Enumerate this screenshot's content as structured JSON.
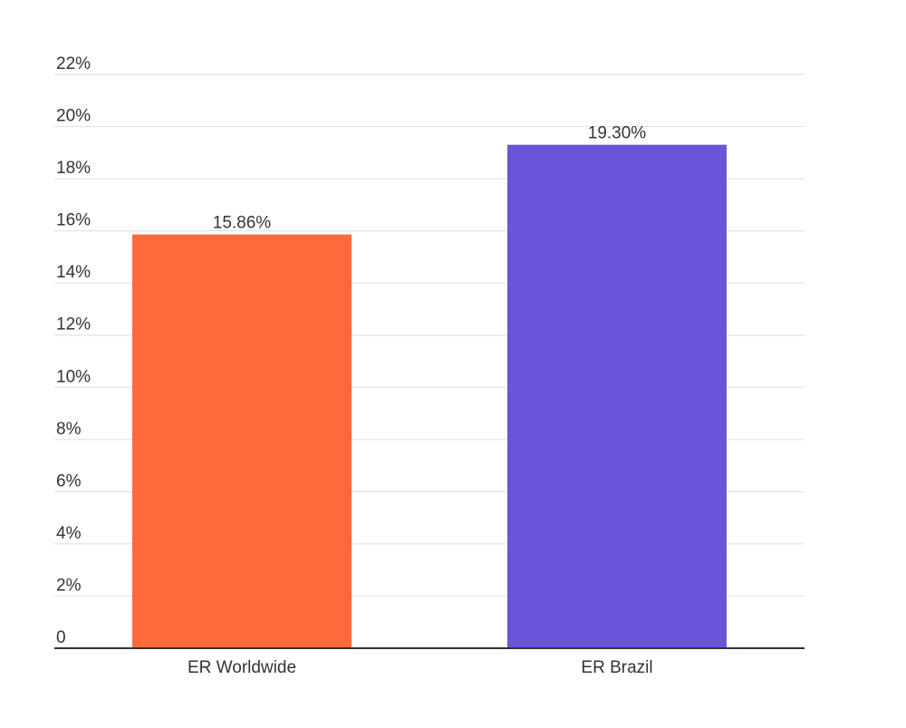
{
  "chart_data": {
    "type": "bar",
    "title": "",
    "xlabel": "",
    "ylabel": "",
    "categories": [
      "ER Worldwide",
      "ER Brazil"
    ],
    "values": [
      15.86,
      19.3
    ],
    "value_labels": [
      "15.86%",
      "19.30%"
    ],
    "bar_colors": [
      "#FF6A3A",
      "#6B54DA"
    ],
    "ylim": [
      0,
      22
    ],
    "yticks": [
      0,
      2,
      4,
      6,
      8,
      10,
      12,
      14,
      16,
      18,
      20,
      22
    ],
    "ytick_labels": [
      "0",
      "2%",
      "4%",
      "6%",
      "8%",
      "10%",
      "12%",
      "14%",
      "16%",
      "18%",
      "20%",
      "22%"
    ],
    "grid": true,
    "legend": "none"
  }
}
